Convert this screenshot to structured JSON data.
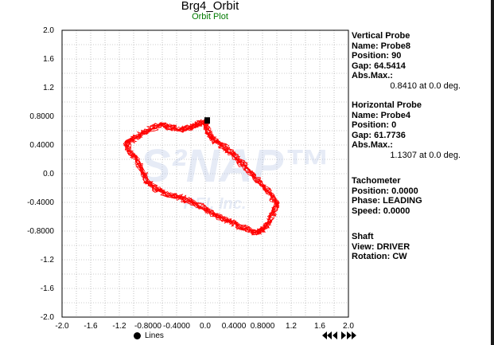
{
  "title": "Brg4_Orbit",
  "subtitle": "Orbit Plot",
  "watermark": {
    "line1": "S²NAP™",
    "line2": "REI, Inc."
  },
  "colors": {
    "trace": "#ff0000",
    "grid": "#999999",
    "subtitle": "#007a00",
    "marker": "#000000"
  },
  "info": {
    "vertical": {
      "header": "Vertical Probe",
      "name": "Name: Probe8",
      "position": "Position: 90",
      "gap": "Gap: 64.5414",
      "absmax_label": "Abs.Max.:",
      "absmax_value": "0.8410 at 0.0 deg."
    },
    "horizontal": {
      "header": "Horizontal Probe",
      "name": "Name: Probe4",
      "position": "Position: 0",
      "gap": "Gap: 61.7736",
      "absmax_label": "Abs.Max.:",
      "absmax_value": "1.1307 at 0.0 deg."
    },
    "tachometer": {
      "header": "Tachometer",
      "position": "Position: 0.0000",
      "phase": "Phase: LEADING",
      "speed": "Speed: 0.0000"
    },
    "shaft": {
      "header": "Shaft",
      "view": "View: DRIVER",
      "rotation": "Rotation: CW"
    }
  },
  "legend": {
    "label": "Lines"
  },
  "chart_data": {
    "type": "line",
    "title": "Brg4_Orbit",
    "subtitle": "Orbit Plot",
    "xlim": [
      -2.0,
      2.0
    ],
    "ylim": [
      -2.0,
      2.0
    ],
    "grid": true,
    "x_ticks": [
      "-2.0",
      "-1.6",
      "-1.2",
      "-0.8000",
      "-0.4000",
      "0.0",
      "0.4000",
      "0.8000",
      "1.2",
      "1.6",
      "2.0"
    ],
    "y_ticks": [
      "2.0",
      "1.6",
      "1.2",
      "0.8000",
      "0.4000",
      "0.0",
      "-0.4000",
      "-0.8000",
      "-1.2",
      "-1.6",
      "-2.0"
    ],
    "series": [
      {
        "values_xy": [
          [
            0.0,
            0.72
          ],
          [
            -0.1,
            0.7
          ],
          [
            -0.2,
            0.65
          ],
          [
            -0.35,
            0.62
          ],
          [
            -0.5,
            0.65
          ],
          [
            -0.62,
            0.68
          ],
          [
            -0.78,
            0.62
          ],
          [
            -0.9,
            0.55
          ],
          [
            -1.0,
            0.48
          ],
          [
            -1.1,
            0.43
          ],
          [
            -1.05,
            0.3
          ],
          [
            -0.95,
            0.18
          ],
          [
            -0.88,
            0.05
          ],
          [
            -0.82,
            -0.1
          ],
          [
            -0.7,
            -0.2
          ],
          [
            -0.55,
            -0.27
          ],
          [
            -0.35,
            -0.33
          ],
          [
            -0.18,
            -0.4
          ],
          [
            0.0,
            -0.48
          ],
          [
            0.15,
            -0.58
          ],
          [
            0.3,
            -0.65
          ],
          [
            0.45,
            -0.72
          ],
          [
            0.6,
            -0.78
          ],
          [
            0.72,
            -0.82
          ],
          [
            0.8,
            -0.78
          ],
          [
            0.88,
            -0.7
          ],
          [
            0.95,
            -0.55
          ],
          [
            1.0,
            -0.42
          ],
          [
            0.92,
            -0.3
          ],
          [
            0.82,
            -0.18
          ],
          [
            0.7,
            -0.05
          ],
          [
            0.58,
            0.08
          ],
          [
            0.45,
            0.2
          ],
          [
            0.35,
            0.3
          ],
          [
            0.22,
            0.4
          ],
          [
            0.12,
            0.48
          ],
          [
            0.05,
            0.55
          ],
          [
            0.0,
            0.72
          ]
        ]
      }
    ],
    "marker": {
      "x": 0.0,
      "y": 0.72
    }
  }
}
